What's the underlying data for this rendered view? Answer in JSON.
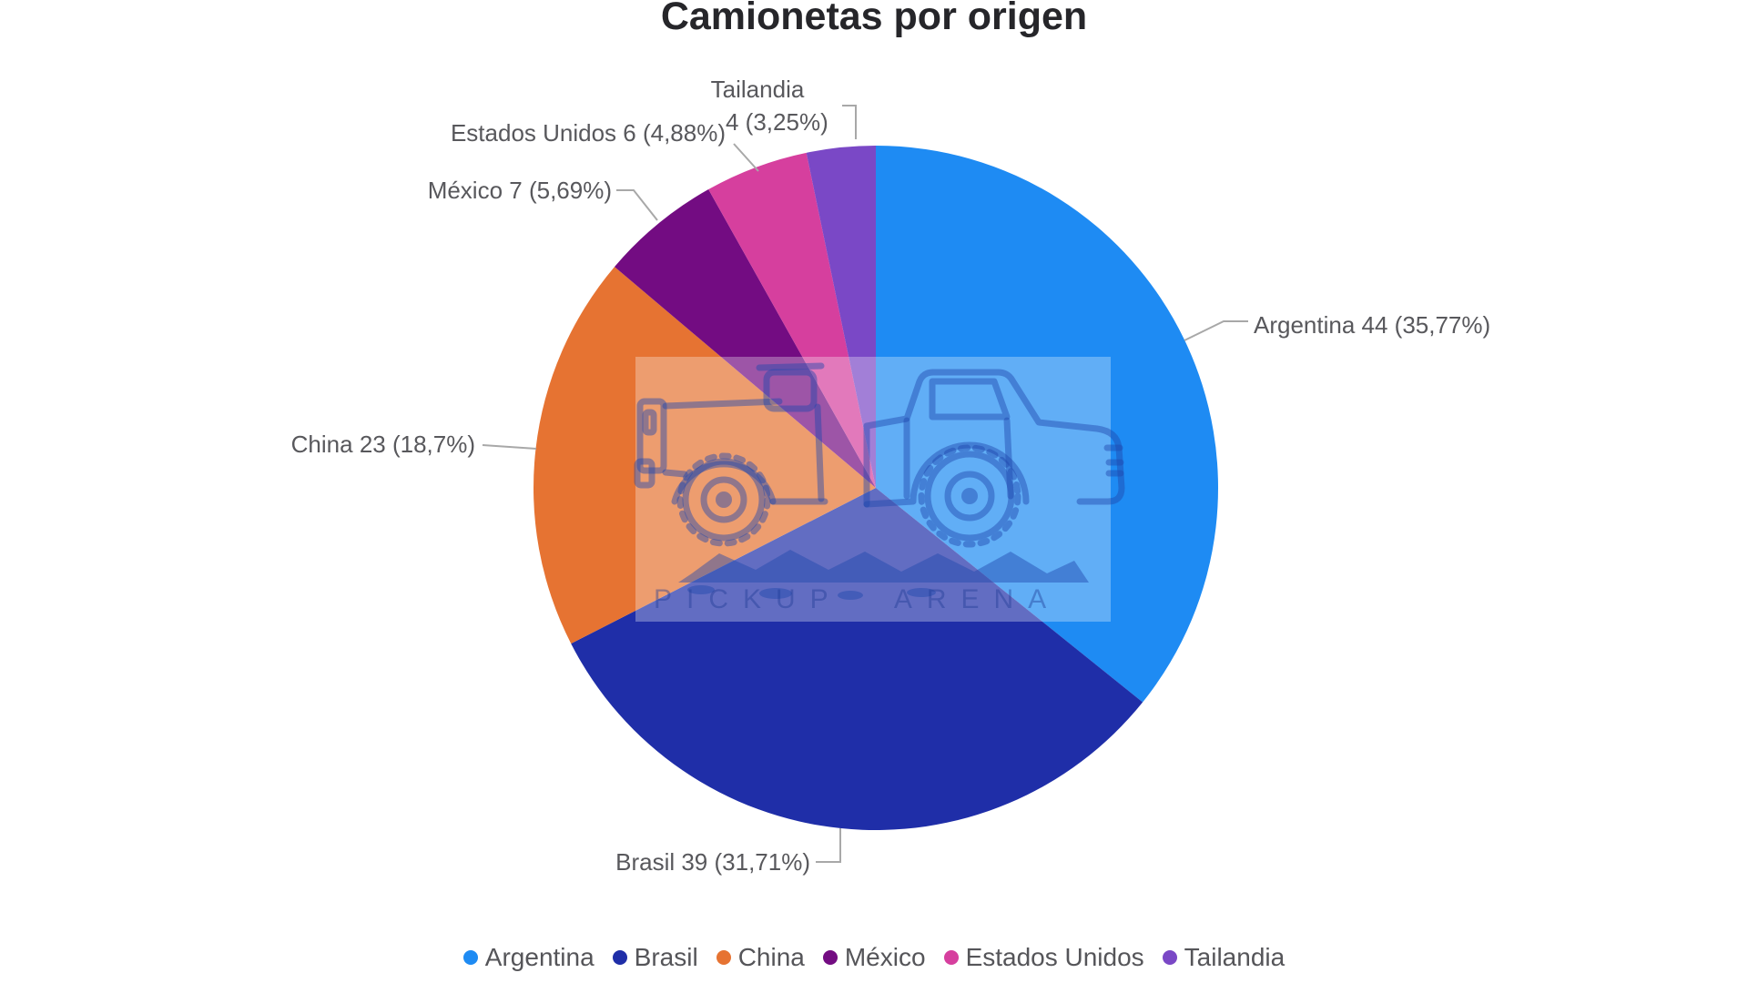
{
  "chart_data": {
    "type": "pie",
    "title": "Camionetas por origen",
    "total": 123,
    "start_angle_deg": 0,
    "direction": "clockwise",
    "legend_position": "bottom",
    "watermark_text": "PICKUP ARENA",
    "slices": [
      {
        "name": "Argentina",
        "value": 44,
        "percent": "35,77%",
        "color": "#1E8BF3",
        "label": "Argentina 44 (35,77%)"
      },
      {
        "name": "Brasil",
        "value": 39,
        "percent": "31,71%",
        "color": "#1F2EA8",
        "label": "Brasil 39 (31,71%)"
      },
      {
        "name": "China",
        "value": 23,
        "percent": "18,7%",
        "color": "#E67332",
        "label": "China 23 (18,7%)"
      },
      {
        "name": "México",
        "value": 7,
        "percent": "5,69%",
        "color": "#730C82",
        "label": "México 7 (5,69%)"
      },
      {
        "name": "Estados Unidos",
        "value": 6,
        "percent": "4,88%",
        "color": "#D63F9E",
        "label": "Estados Unidos 6 (4,88%)"
      },
      {
        "name": "Tailandia",
        "value": 4,
        "percent": "3,25%",
        "color": "#7A48C6",
        "label": "Tailandia",
        "label_line2": "4 (3,25%)"
      }
    ]
  }
}
